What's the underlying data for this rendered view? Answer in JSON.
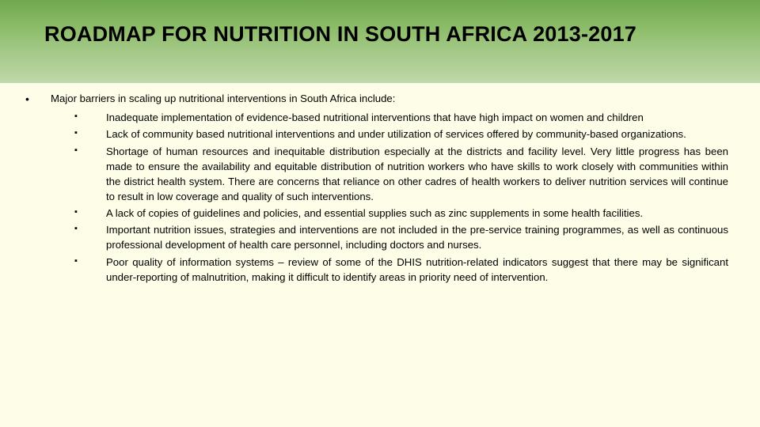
{
  "header_background_gradient": [
    "#6fa84f",
    "#8ebd6a",
    "#a6ca8b",
    "#bfd8a9"
  ],
  "page_background": "#fefde8",
  "text_color": "#000000",
  "title_fontsize": 27,
  "body_fontsize": 13.2,
  "bullet_l1_char": "•",
  "bullet_l2_char": "▪",
  "title": "ROADMAP FOR NUTRITION IN SOUTH AFRICA 2013-2017",
  "lead_text": "Major barriers in scaling up nutritional interventions  in South Africa include:",
  "barriers": [
    "Inadequate implementation of evidence-based nutritional interventions that have high impact on women and children",
    "Lack of community based nutritional interventions and under utilization of services offered by community-based organizations.",
    "Shortage of human resources and inequitable distribution especially at the districts and facility level. Very little progress has been made to ensure the availability and equitable distribution of nutrition workers who have skills to work closely with communities within the district health system. There are concerns that reliance on other cadres of health workers to deliver nutrition services will continue to result in low coverage and quality of such interventions.",
    "A lack of copies of guidelines and policies, and essential supplies such as zinc supplements in some health facilities.",
    "Important nutrition issues, strategies and interventions are not included in the pre-service training programmes, as well as continuous professional development of health care personnel, including doctors and nurses.",
    "Poor quality of information systems – review of some of the DHIS nutrition-related indicators suggest that there may be significant under-reporting of malnutrition, making it difficult to identify areas in priority need of intervention."
  ]
}
